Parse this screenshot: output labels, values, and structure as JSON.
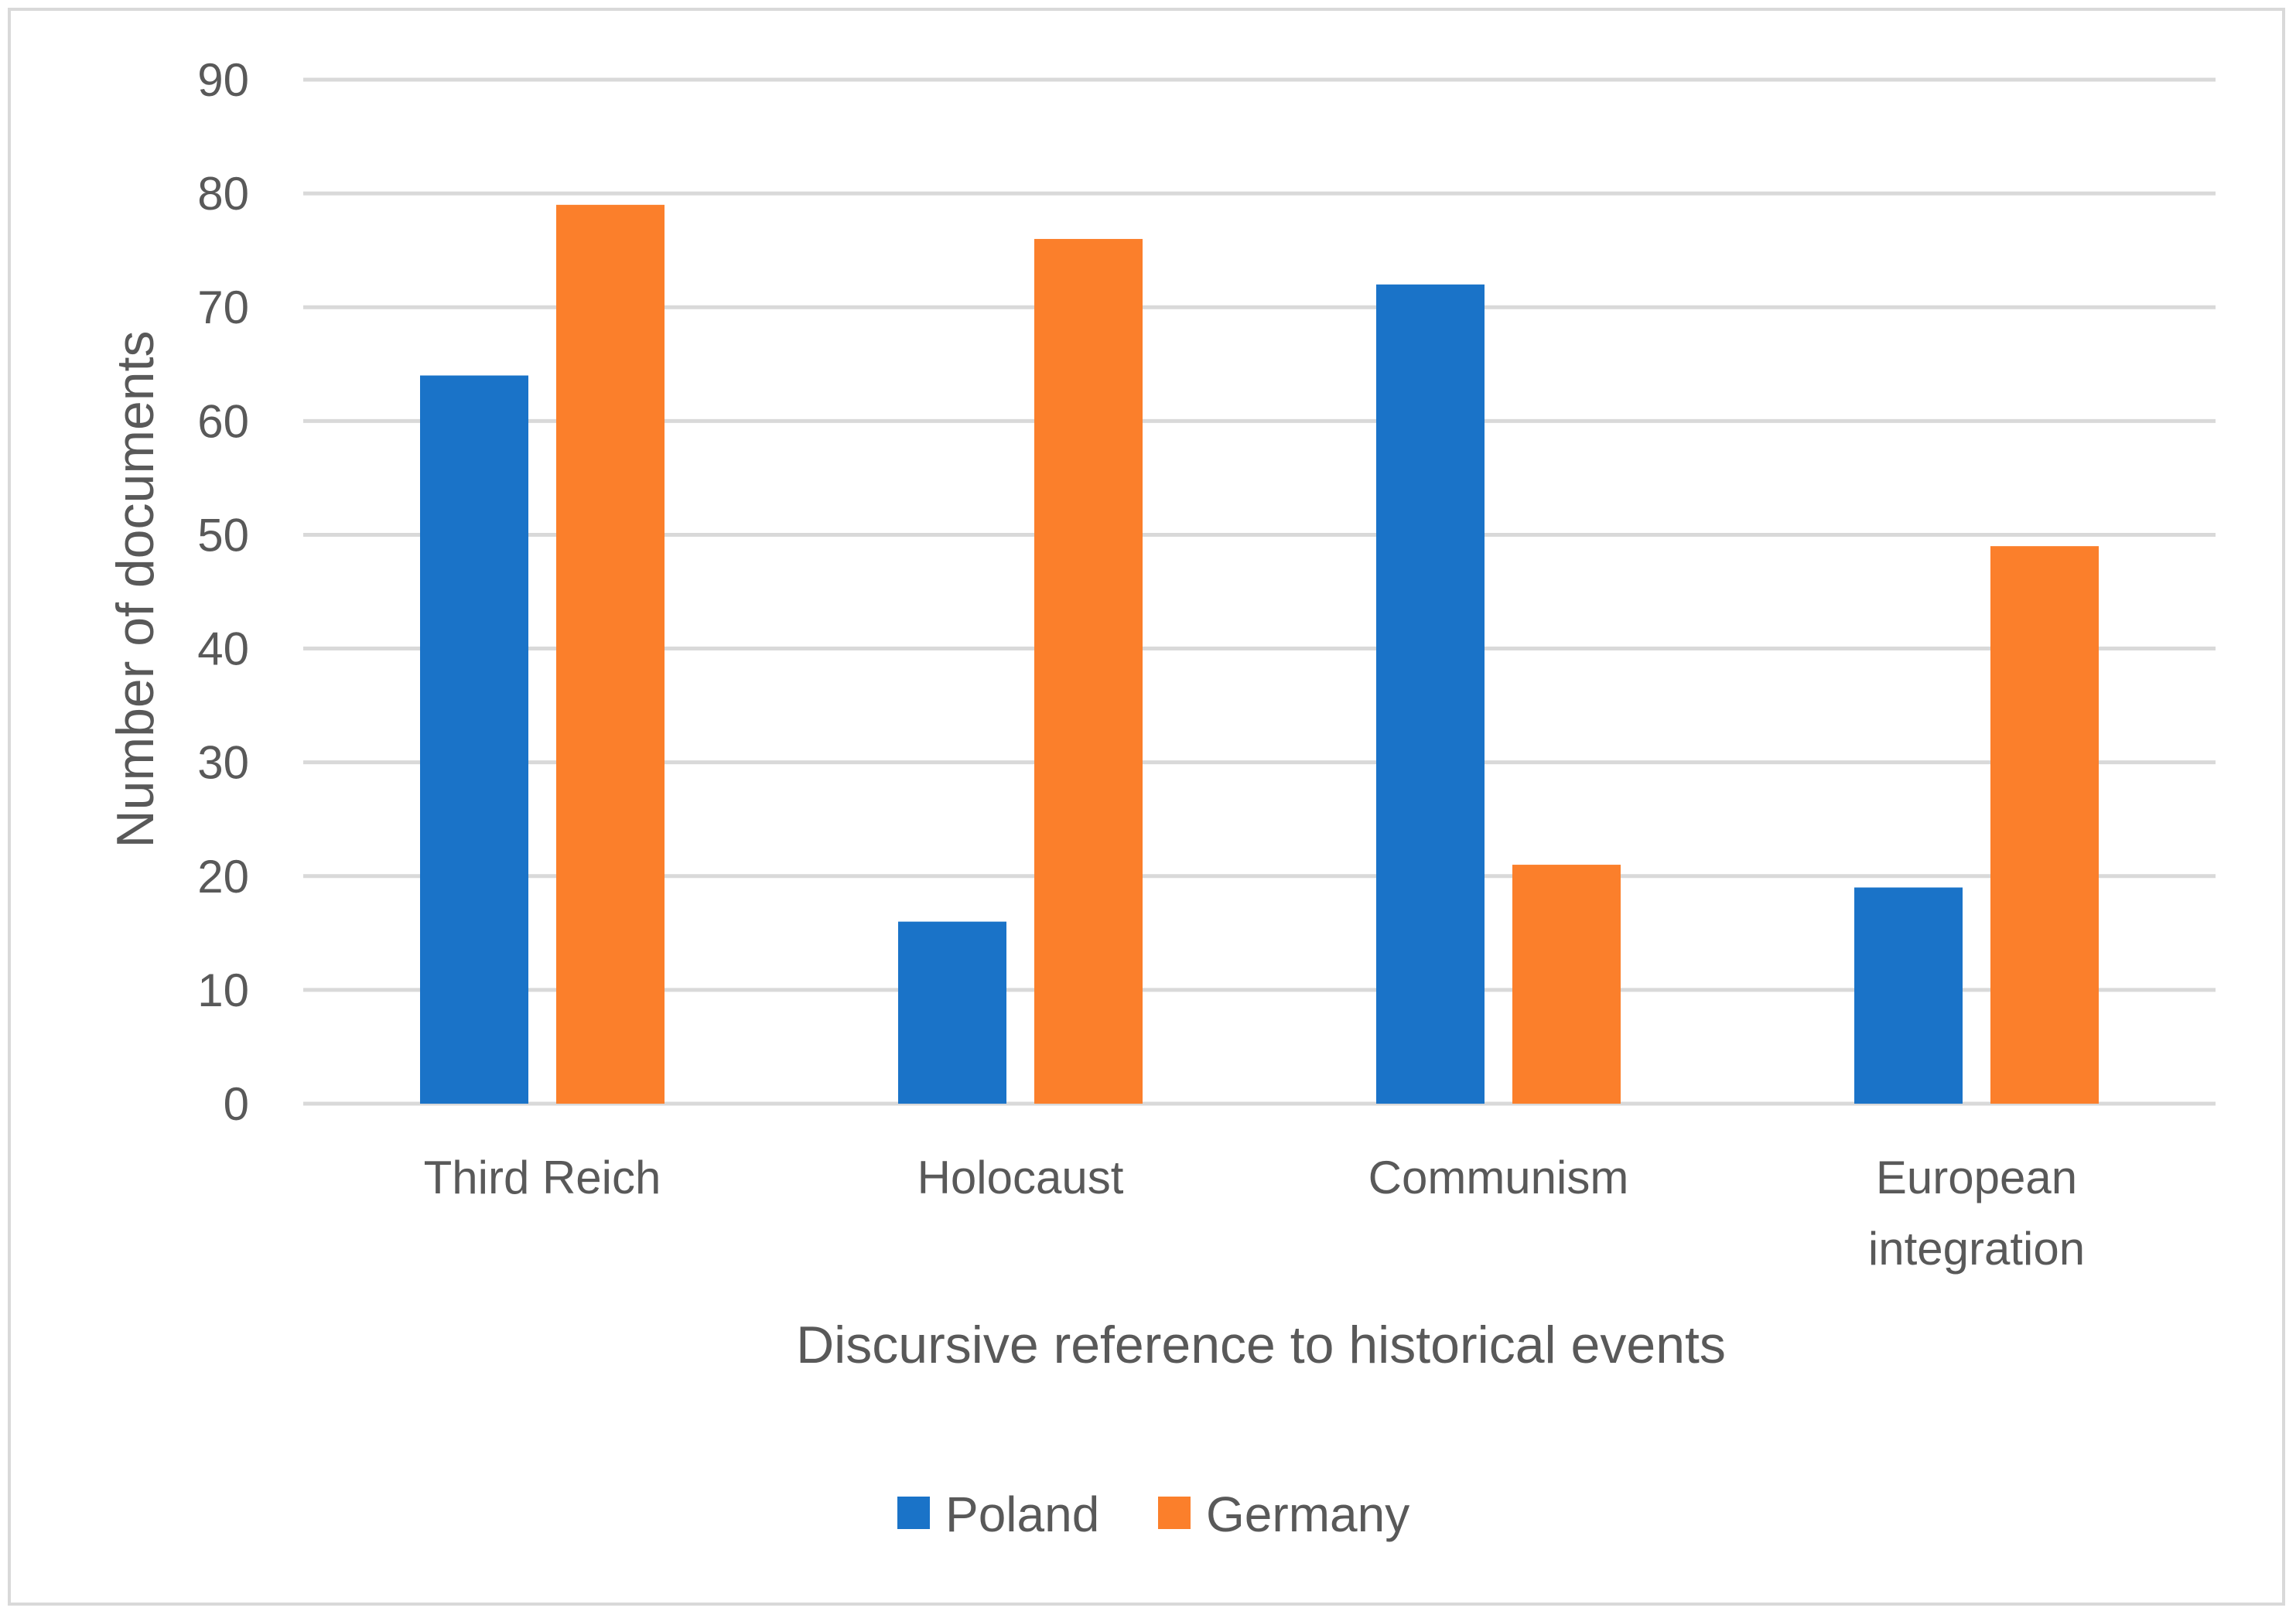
{
  "chart_data": {
    "type": "bar",
    "title": "",
    "xlabel": "Discursive reference to historical events",
    "ylabel": "Number of documents",
    "categories": [
      [
        "Third Reich"
      ],
      [
        "Holocaust"
      ],
      [
        "Communism"
      ],
      [
        "European",
        "integration"
      ]
    ],
    "series": [
      {
        "name": "Poland",
        "color": "#1a73c8",
        "values": [
          64,
          16,
          72,
          19
        ]
      },
      {
        "name": "Germany",
        "color": "#fb7f2b",
        "values": [
          79,
          76,
          21,
          49
        ]
      }
    ],
    "ylim": [
      0,
      90
    ],
    "yticks": [
      0,
      10,
      20,
      30,
      40,
      50,
      60,
      70,
      80,
      90
    ],
    "grid": true,
    "legend": "bottom-center",
    "colors": {
      "grid": "#d9d9d9",
      "text": "#595959",
      "border": "#d9d9d9"
    }
  }
}
